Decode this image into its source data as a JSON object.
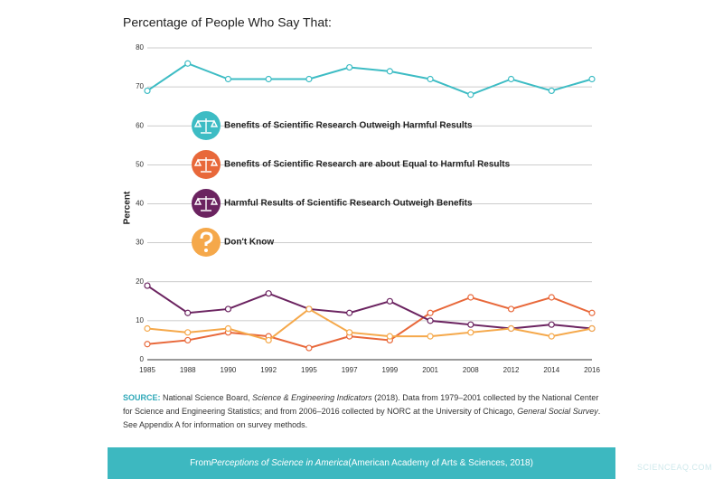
{
  "chart_data": {
    "type": "line",
    "title": "Percentage of People Who Say That:",
    "y_label": "Percent",
    "categories": [
      "1985",
      "1988",
      "1990",
      "1992",
      "1995",
      "1997",
      "1999",
      "2001",
      "2008",
      "2012",
      "2014",
      "2016"
    ],
    "series": [
      {
        "name": "Benefits of Scientific Research Outweigh Harmful Results",
        "color": "#3dbcc4",
        "values": [
          69,
          76,
          72,
          72,
          72,
          75,
          74,
          72,
          68,
          72,
          69,
          72
        ]
      },
      {
        "name": "Benefits of Scientific Research are about Equal to Harmful Results",
        "color": "#e8683a",
        "values": [
          4,
          5,
          7,
          6,
          3,
          6,
          5,
          12,
          16,
          13,
          16,
          12
        ]
      },
      {
        "name": "Harmful Results of Scientific Research Outweigh Benefits",
        "color": "#6b2360",
        "values": [
          19,
          12,
          13,
          17,
          13,
          12,
          15,
          10,
          9,
          8,
          9,
          8
        ]
      },
      {
        "name": "Don't Know",
        "color": "#f5a84a",
        "values": [
          8,
          7,
          8,
          5,
          13,
          7,
          6,
          6,
          7,
          8,
          6,
          8
        ]
      }
    ],
    "ylim": [
      0,
      80
    ],
    "yticks": [
      0,
      10,
      20,
      30,
      40,
      50,
      60,
      70,
      80
    ],
    "grid": true
  },
  "source": {
    "label": "SOURCE:",
    "parts": [
      {
        "text": " National Science Board, ",
        "italic": false
      },
      {
        "text": "Science & Engineering Indicators",
        "italic": true
      },
      {
        "text": " (2018). Data from 1979–2001 collected by the National Center for Science and Engineering Statistics; and from 2006–2016 collected by NORC at the University of Chicago, ",
        "italic": false
      },
      {
        "text": "General Social Survey",
        "italic": true
      },
      {
        "text": ". See Appendix A for information on survey methods.",
        "italic": false
      }
    ]
  },
  "footer": {
    "parts": [
      {
        "text": "From ",
        "italic": false
      },
      {
        "text": "Perceptions of Science in America",
        "italic": true
      },
      {
        "text": " (American Academy of Arts & Sciences, 2018)",
        "italic": false
      }
    ]
  },
  "watermark": "SCIENCEAQ.COM"
}
